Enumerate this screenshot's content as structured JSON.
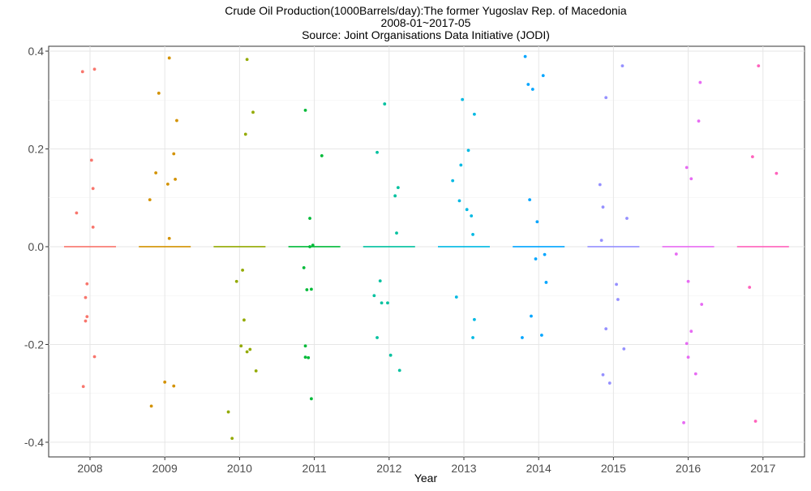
{
  "chart_data": {
    "type": "scatter",
    "title_lines": [
      "Crude Oil Production(1000Barrels/day):The former Yugoslav Rep. of Macedonia",
      "2008-01~2017-05",
      "Source: Joint Organisations Data Initiative (JODI)"
    ],
    "xlabel": "Year",
    "ylabel": "",
    "ylim": [
      -0.43,
      0.41
    ],
    "yticks": [
      -0.4,
      -0.2,
      0.0,
      0.2,
      0.4
    ],
    "ytick_labels": [
      "-0.4",
      "-0.2",
      "0.0",
      "0.2",
      "0.4"
    ],
    "categories": [
      "2008",
      "2009",
      "2010",
      "2011",
      "2012",
      "2013",
      "2014",
      "2015",
      "2016",
      "2017"
    ],
    "grid": true,
    "legend": "none",
    "series": [
      {
        "category": "2008",
        "color": "#F8766D",
        "median": 0.0,
        "points": [
          [
            -0.18,
            0.069
          ],
          [
            -0.1,
            0.358
          ],
          [
            -0.06,
            -0.104
          ],
          [
            -0.06,
            -0.152
          ],
          [
            -0.04,
            -0.143
          ],
          [
            -0.04,
            -0.076
          ],
          [
            0.02,
            0.177
          ],
          [
            0.04,
            0.119
          ],
          [
            0.04,
            0.04
          ],
          [
            0.06,
            0.363
          ],
          [
            0.06,
            -0.225
          ],
          [
            -0.09,
            -0.286
          ]
        ]
      },
      {
        "category": "2009",
        "color": "#D39200",
        "median": 0.0,
        "points": [
          [
            -0.2,
            0.096
          ],
          [
            -0.18,
            -0.326
          ],
          [
            -0.12,
            0.151
          ],
          [
            -0.08,
            0.314
          ],
          [
            0.0,
            -0.277
          ],
          [
            0.04,
            0.128
          ],
          [
            0.06,
            0.386
          ],
          [
            0.06,
            0.017
          ],
          [
            0.12,
            0.19
          ],
          [
            0.14,
            0.138
          ],
          [
            0.16,
            0.258
          ],
          [
            0.12,
            -0.285
          ]
        ]
      },
      {
        "category": "2010",
        "color": "#93AA00",
        "median": 0.0,
        "points": [
          [
            -0.15,
            -0.338
          ],
          [
            -0.1,
            -0.392
          ],
          [
            -0.04,
            -0.071
          ],
          [
            0.02,
            -0.203
          ],
          [
            0.04,
            -0.048
          ],
          [
            0.06,
            -0.15
          ],
          [
            0.08,
            0.23
          ],
          [
            0.1,
            0.383
          ],
          [
            0.1,
            -0.215
          ],
          [
            0.14,
            -0.21
          ],
          [
            0.18,
            0.275
          ],
          [
            0.22,
            -0.254
          ]
        ]
      },
      {
        "category": "2011",
        "color": "#00BA38",
        "median": 0.0,
        "points": [
          [
            -0.14,
            -0.043
          ],
          [
            -0.12,
            0.279
          ],
          [
            -0.12,
            -0.203
          ],
          [
            -0.12,
            -0.226
          ],
          [
            -0.1,
            -0.088
          ],
          [
            -0.08,
            -0.227
          ],
          [
            -0.06,
            0.058
          ],
          [
            -0.04,
            -0.087
          ],
          [
            -0.04,
            -0.311
          ],
          [
            -0.02,
            0.003
          ],
          [
            0.1,
            0.186
          ],
          [
            -0.06,
            0.0
          ]
        ]
      },
      {
        "category": "2012",
        "color": "#00C19F",
        "median": 0.0,
        "points": [
          [
            -0.2,
            -0.1
          ],
          [
            -0.16,
            0.193
          ],
          [
            -0.16,
            -0.186
          ],
          [
            -0.12,
            -0.07
          ],
          [
            -0.1,
            -0.115
          ],
          [
            -0.06,
            0.292
          ],
          [
            -0.02,
            -0.115
          ],
          [
            0.02,
            -0.222
          ],
          [
            0.08,
            0.104
          ],
          [
            0.1,
            0.028
          ],
          [
            0.12,
            0.121
          ],
          [
            0.14,
            -0.253
          ]
        ]
      },
      {
        "category": "2013",
        "color": "#00B9E3",
        "median": 0.0,
        "points": [
          [
            -0.15,
            0.135
          ],
          [
            -0.1,
            -0.103
          ],
          [
            -0.06,
            0.094
          ],
          [
            -0.04,
            0.167
          ],
          [
            -0.02,
            0.301
          ],
          [
            0.04,
            0.076
          ],
          [
            0.06,
            0.197
          ],
          [
            0.1,
            0.063
          ],
          [
            0.12,
            -0.186
          ],
          [
            0.14,
            0.271
          ],
          [
            0.12,
            0.025
          ],
          [
            0.14,
            -0.149
          ]
        ]
      },
      {
        "category": "2014",
        "color": "#00A5FF",
        "median": 0.0,
        "points": [
          [
            -0.22,
            -0.186
          ],
          [
            -0.18,
            0.389
          ],
          [
            -0.14,
            0.332
          ],
          [
            -0.12,
            0.096
          ],
          [
            -0.1,
            -0.142
          ],
          [
            -0.08,
            0.322
          ],
          [
            -0.04,
            -0.025
          ],
          [
            -0.02,
            0.051
          ],
          [
            0.04,
            -0.181
          ],
          [
            0.06,
            0.35
          ],
          [
            0.08,
            -0.016
          ],
          [
            0.1,
            -0.073
          ]
        ]
      },
      {
        "category": "2015",
        "color": "#9590FF",
        "median": 0.0,
        "points": [
          [
            -0.18,
            0.127
          ],
          [
            -0.16,
            0.013
          ],
          [
            -0.14,
            0.081
          ],
          [
            -0.14,
            -0.262
          ],
          [
            -0.1,
            0.305
          ],
          [
            -0.1,
            -0.168
          ],
          [
            -0.05,
            -0.279
          ],
          [
            0.04,
            -0.077
          ],
          [
            0.06,
            -0.108
          ],
          [
            0.12,
            0.37
          ],
          [
            0.14,
            -0.209
          ],
          [
            0.18,
            0.058
          ]
        ]
      },
      {
        "category": "2016",
        "color": "#E76BF3",
        "median": 0.0,
        "points": [
          [
            -0.16,
            -0.015
          ],
          [
            -0.06,
            -0.36
          ],
          [
            -0.02,
            0.162
          ],
          [
            -0.02,
            -0.198
          ],
          [
            0.0,
            -0.071
          ],
          [
            0.0,
            -0.226
          ],
          [
            0.04,
            0.139
          ],
          [
            0.04,
            -0.173
          ],
          [
            0.1,
            -0.26
          ],
          [
            0.14,
            0.257
          ],
          [
            0.16,
            0.336
          ],
          [
            0.18,
            -0.118
          ]
        ]
      },
      {
        "category": "2017",
        "color": "#FF62BC",
        "median": 0.0,
        "points": [
          [
            -0.18,
            -0.083
          ],
          [
            -0.14,
            0.184
          ],
          [
            -0.1,
            -0.357
          ],
          [
            -0.06,
            0.37
          ],
          [
            0.18,
            0.15
          ]
        ]
      }
    ]
  }
}
